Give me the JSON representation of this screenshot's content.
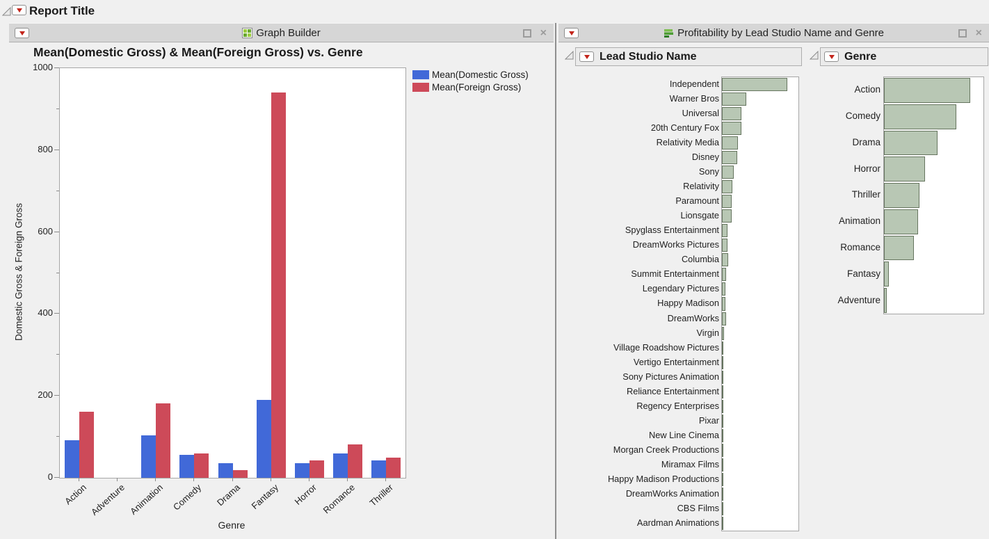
{
  "report": {
    "title": "Report Title"
  },
  "panels": {
    "graph_builder": {
      "title": "Graph Builder"
    },
    "profitability": {
      "title": "Profitability by Lead Studio Name and Genre"
    }
  },
  "colors": {
    "domestic_blue": "#4169d8",
    "foreign_red": "#cd4a59",
    "histogram_fill": "#b8c7b4",
    "histogram_border": "#66755f"
  },
  "chart_data": [
    {
      "id": "gross_by_genre",
      "type": "bar",
      "title": "Mean(Domestic Gross) & Mean(Foreign Gross) vs. Genre",
      "xlabel": "Genre",
      "ylabel": "Domestic Gross & Foreign Gross",
      "ylim": [
        0,
        1000
      ],
      "yticks": [
        0,
        200,
        400,
        600,
        800,
        1000
      ],
      "grid": false,
      "legend_position": "right",
      "categories": [
        "Action",
        "Adventure",
        "Animation",
        "Comedy",
        "Drama",
        "Fantasy",
        "Horror",
        "Romance",
        "Thriller"
      ],
      "series": [
        {
          "name": "Mean(Domestic Gross)",
          "color": "#4169d8",
          "values": [
            91,
            0,
            103,
            56,
            35,
            190,
            35,
            60,
            42
          ]
        },
        {
          "name": "Mean(Foreign Gross)",
          "color": "#cd4a59",
          "values": [
            161,
            0,
            181,
            59,
            18,
            940,
            42,
            82,
            49
          ]
        }
      ]
    },
    {
      "id": "lead_studio_distribution",
      "type": "bar",
      "orientation": "horizontal",
      "title": "Lead Studio Name",
      "xlabel": "",
      "ylabel": "",
      "categories": [
        "Independent",
        "Warner Bros",
        "Universal",
        "20th Century Fox",
        "Relativity Media",
        "Disney",
        "Sony",
        "Relativity",
        "Paramount",
        "Lionsgate",
        "Spyglass Entertainment",
        "DreamWorks Pictures",
        "Columbia",
        "Summit Entertainment",
        "Legendary Pictures",
        "Happy Madison",
        "DreamWorks",
        "Virgin",
        "Village Roadshow Pictures",
        "Vertigo Entertainment",
        "Sony Pictures Animation",
        "Reliance Entertainment",
        "Regency Enterprises",
        "Pixar",
        "New Line Cinema",
        "Morgan Creek Productions",
        "Miramax Films",
        "Happy Madison Productions",
        "DreamWorks Animation",
        "CBS Films",
        "Aardman Animations"
      ],
      "values_pct_of_axis": [
        85,
        32,
        25,
        25,
        21,
        20,
        15,
        14,
        13,
        13,
        7.5,
        7.5,
        8,
        5.5,
        4.5,
        4.5,
        5.5,
        2.7,
        1.8,
        1.8,
        1.8,
        1.8,
        1.8,
        1.4,
        1.4,
        0.9,
        0.9,
        0.9,
        0.9,
        0.9,
        0.9
      ]
    },
    {
      "id": "genre_distribution",
      "type": "bar",
      "orientation": "horizontal",
      "title": "Genre",
      "xlabel": "",
      "ylabel": "",
      "categories": [
        "Action",
        "Comedy",
        "Drama",
        "Horror",
        "Thriller",
        "Animation",
        "Romance",
        "Fantasy",
        "Adventure"
      ],
      "values_pct_of_axis": [
        87,
        73,
        54,
        41,
        36,
        34,
        30,
        5,
        3
      ]
    }
  ]
}
